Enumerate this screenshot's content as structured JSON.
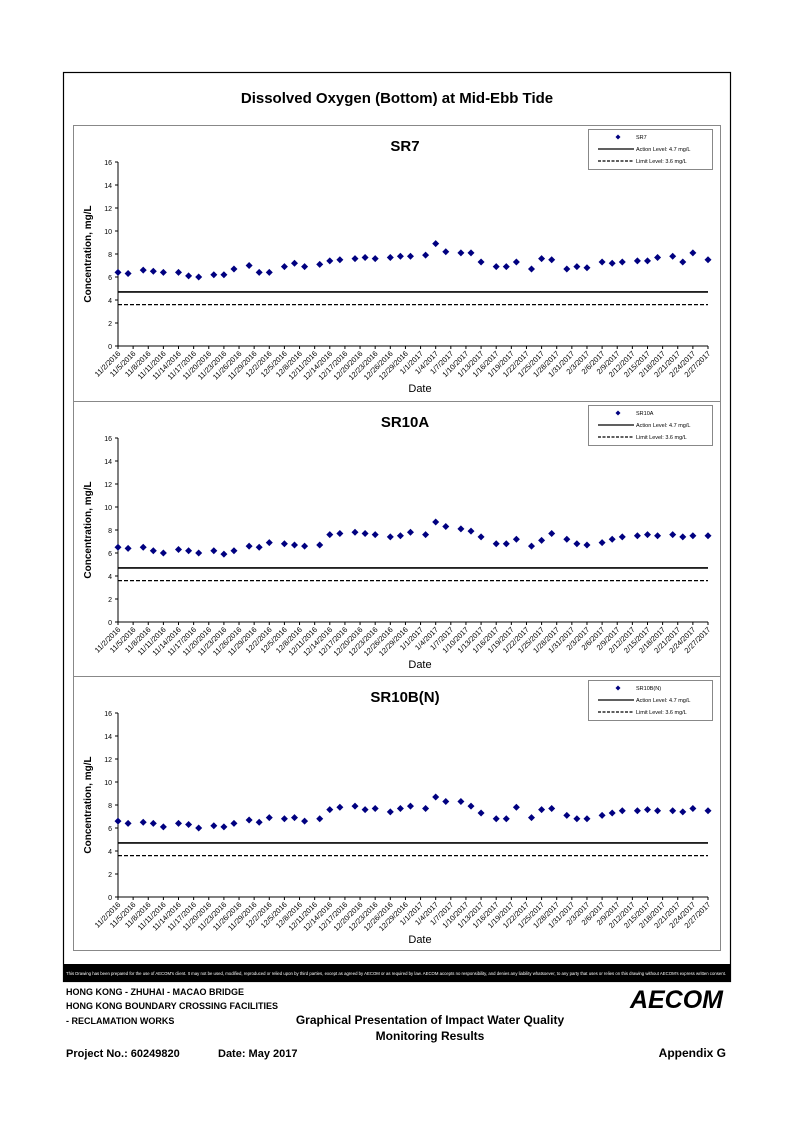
{
  "header": {
    "title": "Dissolved Oxygen (Bottom) at Mid-Ebb Tide"
  },
  "chart_data": [
    {
      "type": "scatter",
      "title": "SR7",
      "xlabel": "Date",
      "ylabel": "Concentration, mg/L",
      "x": [
        "11/2/2016",
        "11/4/2016",
        "11/7/2016",
        "11/9/2016",
        "11/11/2016",
        "11/14/2016",
        "11/16/2016",
        "11/18/2016",
        "11/21/2016",
        "11/23/2016",
        "11/25/2016",
        "11/28/2016",
        "11/30/2016",
        "12/2/2016",
        "12/5/2016",
        "12/7/2016",
        "12/9/2016",
        "12/12/2016",
        "12/14/2016",
        "12/16/2016",
        "12/19/2016",
        "12/21/2016",
        "12/23/2016",
        "12/26/2016",
        "12/28/2016",
        "12/30/2016",
        "1/2/2017",
        "1/4/2017",
        "1/6/2017",
        "1/9/2017",
        "1/11/2017",
        "1/13/2017",
        "1/16/2017",
        "1/18/2017",
        "1/20/2017",
        "1/23/2017",
        "1/25/2017",
        "1/27/2017",
        "1/30/2017",
        "2/1/2017",
        "2/3/2017",
        "2/6/2017",
        "2/8/2017",
        "2/10/2017",
        "2/13/2017",
        "2/15/2017",
        "2/17/2017",
        "2/20/2017",
        "2/22/2017",
        "2/24/2017",
        "2/27/2017"
      ],
      "series": [
        {
          "name": "SR7",
          "color": "#000080",
          "values": [
            6.4,
            6.3,
            6.6,
            6.5,
            6.4,
            6.4,
            6.1,
            6.0,
            6.2,
            6.2,
            6.7,
            7.0,
            6.4,
            6.4,
            6.9,
            7.2,
            6.9,
            7.1,
            7.4,
            7.5,
            7.6,
            7.7,
            7.6,
            7.7,
            7.8,
            7.8,
            7.9,
            8.9,
            8.2,
            8.1,
            8.1,
            7.3,
            6.9,
            6.9,
            7.3,
            6.7,
            7.6,
            7.5,
            6.7,
            6.9,
            6.8,
            7.3,
            7.2,
            7.3,
            7.4,
            7.4,
            7.7,
            7.8,
            7.3,
            8.1,
            7.5
          ]
        }
      ],
      "reference_lines": [
        {
          "name": "Action Level: 4.7 mg/L",
          "value": 4.7,
          "style": "solid"
        },
        {
          "name": "Limit Level: 3.6 mg/L",
          "value": 3.6,
          "style": "dashed"
        }
      ],
      "xlim": [
        "11/2/2016",
        "2/27/2017"
      ],
      "xticks": [
        "11/2/2016",
        "11/5/2016",
        "11/8/2016",
        "11/11/2016",
        "11/14/2016",
        "11/17/2016",
        "11/20/2016",
        "11/23/2016",
        "11/26/2016",
        "11/29/2016",
        "12/2/2016",
        "12/5/2016",
        "12/8/2016",
        "12/11/2016",
        "12/14/2016",
        "12/17/2016",
        "12/20/2016",
        "12/23/2016",
        "12/26/2016",
        "12/29/2016",
        "1/1/2017",
        "1/4/2017",
        "1/7/2017",
        "1/10/2017",
        "1/13/2017",
        "1/16/2017",
        "1/19/2017",
        "1/22/2017",
        "1/25/2017",
        "1/28/2017",
        "1/31/2017",
        "2/3/2017",
        "2/6/2017",
        "2/9/2017",
        "2/12/2017",
        "2/15/2017",
        "2/18/2017",
        "2/21/2017",
        "2/24/2017",
        "2/27/2017"
      ],
      "ylim": [
        0,
        16
      ],
      "yticks": [
        0,
        2,
        4,
        6,
        8,
        10,
        12,
        14,
        16
      ],
      "legend": "upper right"
    },
    {
      "type": "scatter",
      "title": "SR10A",
      "xlabel": "Date",
      "ylabel": "Concentration, mg/L",
      "x": [
        "11/2/2016",
        "11/4/2016",
        "11/7/2016",
        "11/9/2016",
        "11/11/2016",
        "11/14/2016",
        "11/16/2016",
        "11/18/2016",
        "11/21/2016",
        "11/23/2016",
        "11/25/2016",
        "11/28/2016",
        "11/30/2016",
        "12/2/2016",
        "12/5/2016",
        "12/7/2016",
        "12/9/2016",
        "12/12/2016",
        "12/14/2016",
        "12/16/2016",
        "12/19/2016",
        "12/21/2016",
        "12/23/2016",
        "12/26/2016",
        "12/28/2016",
        "12/30/2016",
        "1/2/2017",
        "1/4/2017",
        "1/6/2017",
        "1/9/2017",
        "1/11/2017",
        "1/13/2017",
        "1/16/2017",
        "1/18/2017",
        "1/20/2017",
        "1/23/2017",
        "1/25/2017",
        "1/27/2017",
        "1/30/2017",
        "2/1/2017",
        "2/3/2017",
        "2/6/2017",
        "2/8/2017",
        "2/10/2017",
        "2/13/2017",
        "2/15/2017",
        "2/17/2017",
        "2/20/2017",
        "2/22/2017",
        "2/24/2017",
        "2/27/2017"
      ],
      "series": [
        {
          "name": "SR10A",
          "color": "#000080",
          "values": [
            6.5,
            6.4,
            6.5,
            6.2,
            6.0,
            6.3,
            6.2,
            6.0,
            6.2,
            5.9,
            6.2,
            6.6,
            6.5,
            6.9,
            6.8,
            6.7,
            6.6,
            6.7,
            7.6,
            7.7,
            7.8,
            7.7,
            7.6,
            7.4,
            7.5,
            7.8,
            7.6,
            8.7,
            8.3,
            8.1,
            7.9,
            7.4,
            6.8,
            6.8,
            7.2,
            6.6,
            7.1,
            7.7,
            7.2,
            6.8,
            6.7,
            6.9,
            7.2,
            7.4,
            7.5,
            7.6,
            7.5,
            7.6,
            7.4,
            7.5,
            7.5
          ]
        }
      ],
      "reference_lines": [
        {
          "name": "Action Level: 4.7 mg/L",
          "value": 4.7,
          "style": "solid"
        },
        {
          "name": "Limit Level: 3.6 mg/L",
          "value": 3.6,
          "style": "dashed"
        }
      ],
      "xlim": [
        "11/2/2016",
        "2/27/2017"
      ],
      "xticks": [
        "11/2/2016",
        "11/5/2016",
        "11/8/2016",
        "11/11/2016",
        "11/14/2016",
        "11/17/2016",
        "11/20/2016",
        "11/23/2016",
        "11/26/2016",
        "11/29/2016",
        "12/2/2016",
        "12/5/2016",
        "12/8/2016",
        "12/11/2016",
        "12/14/2016",
        "12/17/2016",
        "12/20/2016",
        "12/23/2016",
        "12/26/2016",
        "12/29/2016",
        "1/1/2017",
        "1/4/2017",
        "1/7/2017",
        "1/10/2017",
        "1/13/2017",
        "1/16/2017",
        "1/19/2017",
        "1/22/2017",
        "1/25/2017",
        "1/28/2017",
        "1/31/2017",
        "2/3/2017",
        "2/6/2017",
        "2/9/2017",
        "2/12/2017",
        "2/15/2017",
        "2/18/2017",
        "2/21/2017",
        "2/24/2017",
        "2/27/2017"
      ],
      "ylim": [
        0,
        16
      ],
      "yticks": [
        0,
        2,
        4,
        6,
        8,
        10,
        12,
        14,
        16
      ],
      "legend": "upper right"
    },
    {
      "type": "scatter",
      "title": "SR10B(N)",
      "xlabel": "Date",
      "ylabel": "Concentration, mg/L",
      "x": [
        "11/2/2016",
        "11/4/2016",
        "11/7/2016",
        "11/9/2016",
        "11/11/2016",
        "11/14/2016",
        "11/16/2016",
        "11/18/2016",
        "11/21/2016",
        "11/23/2016",
        "11/25/2016",
        "11/28/2016",
        "11/30/2016",
        "12/2/2016",
        "12/5/2016",
        "12/7/2016",
        "12/9/2016",
        "12/12/2016",
        "12/14/2016",
        "12/16/2016",
        "12/19/2016",
        "12/21/2016",
        "12/23/2016",
        "12/26/2016",
        "12/28/2016",
        "12/30/2016",
        "1/2/2017",
        "1/4/2017",
        "1/6/2017",
        "1/9/2017",
        "1/11/2017",
        "1/13/2017",
        "1/16/2017",
        "1/18/2017",
        "1/20/2017",
        "1/23/2017",
        "1/25/2017",
        "1/27/2017",
        "1/30/2017",
        "2/1/2017",
        "2/3/2017",
        "2/6/2017",
        "2/8/2017",
        "2/10/2017",
        "2/13/2017",
        "2/15/2017",
        "2/17/2017",
        "2/20/2017",
        "2/22/2017",
        "2/24/2017",
        "2/27/2017"
      ],
      "series": [
        {
          "name": "SR10B(N)",
          "color": "#000080",
          "values": [
            6.6,
            6.4,
            6.5,
            6.4,
            6.1,
            6.4,
            6.3,
            6.0,
            6.2,
            6.1,
            6.4,
            6.7,
            6.5,
            6.9,
            6.8,
            6.9,
            6.6,
            6.8,
            7.6,
            7.8,
            7.9,
            7.6,
            7.7,
            7.4,
            7.7,
            7.9,
            7.7,
            8.7,
            8.3,
            8.3,
            7.9,
            7.3,
            6.8,
            6.8,
            7.8,
            6.9,
            7.6,
            7.7,
            7.1,
            6.8,
            6.8,
            7.1,
            7.3,
            7.5,
            7.5,
            7.6,
            7.5,
            7.5,
            7.4,
            7.7,
            7.5
          ]
        }
      ],
      "reference_lines": [
        {
          "name": "Action Level: 4.7 mg/L",
          "value": 4.7,
          "style": "solid"
        },
        {
          "name": "Limit Level: 3.6 mg/L",
          "value": 3.6,
          "style": "dashed"
        }
      ],
      "xlim": [
        "11/2/2016",
        "2/27/2017"
      ],
      "xticks": [
        "11/2/2016",
        "11/5/2016",
        "11/8/2016",
        "11/11/2016",
        "11/14/2016",
        "11/17/2016",
        "11/20/2016",
        "11/23/2016",
        "11/26/2016",
        "11/29/2016",
        "12/2/2016",
        "12/5/2016",
        "12/8/2016",
        "12/11/2016",
        "12/14/2016",
        "12/17/2016",
        "12/20/2016",
        "12/23/2016",
        "12/26/2016",
        "12/29/2016",
        "1/1/2017",
        "1/4/2017",
        "1/7/2017",
        "1/10/2017",
        "1/13/2017",
        "1/16/2017",
        "1/19/2017",
        "1/22/2017",
        "1/25/2017",
        "1/28/2017",
        "1/31/2017",
        "2/3/2017",
        "2/6/2017",
        "2/9/2017",
        "2/12/2017",
        "2/15/2017",
        "2/18/2017",
        "2/21/2017",
        "2/24/2017",
        "2/27/2017"
      ],
      "ylim": [
        0,
        16
      ],
      "yticks": [
        0,
        2,
        4,
        6,
        8,
        10,
        12,
        14,
        16
      ],
      "legend": "upper right"
    }
  ],
  "disclaimer": "This Drawing has been prepared for the use of AECOM's client. It may not be used, modified, reproduced or relied upon by third parties, except as agreed by AECOM or as required by law. AECOM accepts no responsibility, and denies any liability whatsoever, to any party that uses or relies on this drawing without AECOM's express written consent.",
  "footer": {
    "project_lines": [
      "HONG KONG - ZHUHAI - MACAO BRIDGE",
      "HONG KONG BOUNDARY CROSSING FACILITIES",
      "- RECLAMATION WORKS"
    ],
    "subject_lines": [
      "Graphical Presentation of Impact Water Quality",
      "Monitoring Results"
    ],
    "logo": "AECOM",
    "project_no": "Project No.: 60249820",
    "date": "Date: May 2017",
    "appendix": "Appendix G"
  }
}
